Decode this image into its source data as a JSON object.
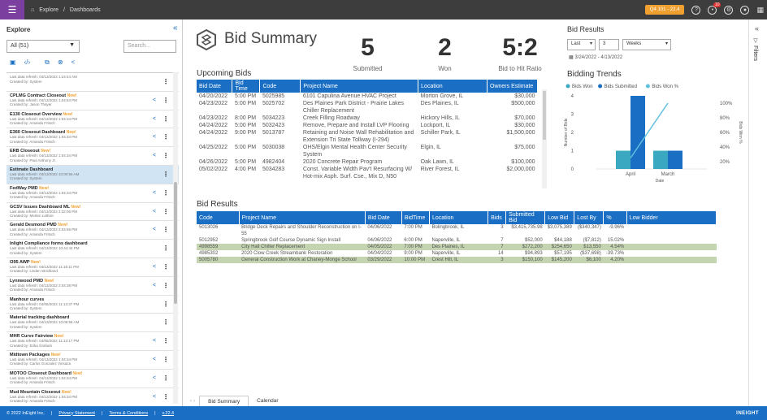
{
  "topbar": {
    "menu_icon": "hamburger-icon",
    "breadcrumb": [
      "Explore",
      "Dashboards"
    ],
    "env_badge": "Q4 101 - 22.4",
    "notification_count": "10"
  },
  "sidebar": {
    "title": "Explore",
    "filter_value": "All (51)",
    "search_placeholder": "Search...",
    "items": [
      {
        "name": "",
        "new": "",
        "refresh": "Last data refresh: 04/13/2022 1:24:44 AM",
        "created": "Created by: System"
      },
      {
        "name": "CPLMG Contract Closeout",
        "new": "New!",
        "refresh": "Last data refresh: 04/13/2022 1:04:54 PM",
        "created": "Created by: Jason Thayer"
      },
      {
        "name": "E130 Closeout Overview",
        "new": "New!",
        "refresh": "Last data refresh: 04/13/2022 1:04:34 PM",
        "created": "Created by: Amanda Fritsch"
      },
      {
        "name": "E360 Closeout Dashboard",
        "new": "New!",
        "refresh": "Last data refresh: 04/13/2022 1:04:34 PM",
        "created": "Created by: Amanda Fritsch"
      },
      {
        "name": "ERB Closeout",
        "new": "New!",
        "refresh": "Last data refresh: 04/13/2022 1:04:34 PM",
        "created": "Created by: Paul Anthony Jr."
      },
      {
        "name": "Estimate Dashboard",
        "new": "",
        "refresh": "Last data refresh: 04/13/2022 10:00:56 AM",
        "created": "Created by: System"
      },
      {
        "name": "FedWay PMD",
        "new": "New!",
        "refresh": "Last data refresh: 04/13/2022 1:04:34 PM",
        "created": "Created by: Amanda Fritsch"
      },
      {
        "name": "GCSV Issues Dashboard ML",
        "new": "New!",
        "refresh": "Last data refresh: 04/13/2022 2:32:06 PM",
        "created": "Created by: Morten Lathrer"
      },
      {
        "name": "Gerald Desmond PMD",
        "new": "New!",
        "refresh": "Last data refresh: 04/13/2022 2:04:55 PM",
        "created": "Created by: Amanda Fritsch"
      },
      {
        "name": "Inlight Compliance forms dashboard",
        "new": "",
        "refresh": "Last data refresh: 04/13/2022 10:44:44 PM",
        "created": "Created by: System"
      },
      {
        "name": "I395 AWP",
        "new": "New!",
        "refresh": "Last data refresh: 04/13/2022 11:16:11 PM",
        "created": "Created by: Lisden Strickland"
      },
      {
        "name": "Lynnwood PMD",
        "new": "New!",
        "refresh": "Last data refresh: 04/13/2022 2:04:38 PM",
        "created": "Created by: Amanda Fritsch"
      },
      {
        "name": "Manhour curves",
        "new": "",
        "refresh": "Last data refresh: 04/05/2022 11:13:37 PM",
        "created": "Created by: System"
      },
      {
        "name": "Material tracking dashboard",
        "new": "",
        "refresh": "Last data refresh: 04/13/2022 10:06:56 AM",
        "created": "Created by: System"
      },
      {
        "name": "MHR Curve Fairview",
        "new": "New!",
        "refresh": "Last data refresh: 04/05/2022 11:13:17 PM",
        "created": "Created by: Erika Graham"
      },
      {
        "name": "Midtown Packages",
        "new": "New!",
        "refresh": "Last data refresh: 04/13/2022 1:04:34 PM",
        "created": "Created by: Carlos Gonzalez Vinsaza"
      },
      {
        "name": "MOTOO Closeout Dashboard",
        "new": "New!",
        "refresh": "Last data refresh: 04/13/2022 1:04:34 PM",
        "created": "Created by: Amanda Fritsch"
      },
      {
        "name": "Mud Mountain Closeout",
        "new": "New!",
        "refresh": "Last data refresh: 04/13/2022 1:04:34 PM",
        "created": "Created by: Amanda Fritsch"
      }
    ]
  },
  "main": {
    "title": "Bid Summary",
    "kpis": [
      {
        "value": "5",
        "label": "Submitted"
      },
      {
        "value": "2",
        "label": "Won"
      },
      {
        "value": "5:2",
        "label": "Bid to Hit Ratio"
      }
    ],
    "upcoming": {
      "title": "Upcoming Bids",
      "headers": [
        "Bid Date",
        "Bid Time",
        "Code",
        "Project Name",
        "Location",
        "Owners Estimate"
      ],
      "rows": [
        [
          "04/20/2022",
          "5:00 PM",
          "5025985",
          "6101 Capulina Avenue HVAC Project",
          "Morton Grove, IL",
          "$30,000"
        ],
        [
          "04/23/2022",
          "5:00 PM",
          "5025702",
          "Des Plaines Park District - Prairie Lakes Chiller Replacement",
          "Des Plaines, IL",
          "$500,000"
        ],
        [
          "04/23/2022",
          "8:00 PM",
          "5034223",
          "Creek Filling Roadway",
          "Hickory Hills, IL",
          "$70,000"
        ],
        [
          "04/24/2022",
          "5:00 PM",
          "5032423",
          "Remove, Prepare and Install LVP Flooring",
          "Lockport, IL",
          "$30,000"
        ],
        [
          "04/24/2022",
          "9:00 PM",
          "5013787",
          "Retaining and Noise Wall Rehabilitation and Extension Tri State Tollway (I-294)",
          "Schiller Park, IL",
          "$1,500,000"
        ],
        [
          "04/25/2022",
          "5:00 PM",
          "5030038",
          "OHS/Elgin Mental Health Center Security System",
          "Elgin, IL",
          "$75,000"
        ],
        [
          "04/26/2022",
          "5:00 PM",
          "4982404",
          "2020 Concrete Repair Program",
          "Oak Lawn, IL",
          "$100,000"
        ],
        [
          "05/02/2022",
          "4:00 PM",
          "5034283",
          "Const. Variable Width Pav't Resurfacing W/ Hot-mix Asph. Surf. Cse., Mix D, N50",
          "River Forest, IL",
          "$2,000,000"
        ]
      ]
    },
    "bid_results": {
      "title": "Bid Results",
      "headers": [
        "Code",
        "Project Name",
        "Bid Date",
        "BidTime",
        "Location",
        "Bids",
        "Submitted Bid",
        "Low Bid",
        "Lost By",
        "%",
        "Low Bidder"
      ],
      "rows": [
        [
          "5013026",
          "Bridge Deck Repairs and Shoulder Reconstruction on I-55",
          "04/06/2022",
          "7:00 PM",
          "Bolingbrook, IL",
          "3",
          "$3,415,735.98",
          "$3,075,389",
          "($340,347)",
          "-9.96%",
          ""
        ],
        [
          "5012952",
          "Springbrook Golf Course Dynamic Sign Install",
          "04/06/2022",
          "6:00 PM",
          "Naperville, IL",
          "7",
          "$52,000",
          "$44,188",
          "($7,812)",
          "15.02%",
          ""
        ],
        [
          "4998559",
          "City Hall Chiller Replacement",
          "04/05/2022",
          "7:00 PM",
          "Des Plaines, IL",
          "7",
          "$272,200",
          "$254,650",
          "$13,550",
          "4.54%",
          ""
        ],
        [
          "4985302",
          "2020 Clow Creek Streambank Restoration",
          "04/04/2022",
          "9:00 PM",
          "Naperville, IL",
          "14",
          "$94,893",
          "$57,195",
          "($37,698)",
          "-39.73%",
          ""
        ],
        [
          "5005780",
          "General Construction Work at Chaney-Monge School",
          "03/29/2022",
          "10:00 PM",
          "Crest Hill, IL",
          "3",
          "$150,100",
          "$145,200",
          "$6,100",
          "4.20%",
          ""
        ]
      ],
      "row_status": [
        "white",
        "white",
        "green",
        "white",
        "green"
      ]
    },
    "side": {
      "title": "Bid Results",
      "period": "Last",
      "count": "3",
      "unit": "Weeks",
      "date_range": "3/24/2022 - 4/13/2022"
    },
    "tabs": [
      "Bid Summary",
      "Calendar"
    ]
  },
  "chart_data": {
    "type": "bar",
    "title": "Bidding Trends",
    "categories": [
      "April",
      "March"
    ],
    "series": [
      {
        "name": "Bids Won",
        "kind": "bar",
        "axis": "left",
        "values": [
          1,
          1
        ],
        "color": "#3aa8c1"
      },
      {
        "name": "Bids Submitted",
        "kind": "bar",
        "axis": "left",
        "values": [
          4,
          1
        ],
        "color": "#1a6fc4"
      },
      {
        "name": "Bids Won %",
        "kind": "line",
        "axis": "right",
        "values": [
          25,
          100
        ],
        "color": "#5fc0e0"
      }
    ],
    "xlabel": "Date",
    "ylabel": "Number of Bids",
    "y2label": "Bids Won %",
    "yticks": [
      0,
      1,
      2,
      3,
      4
    ],
    "y2ticks": [
      "20%",
      "40%",
      "60%",
      "80%",
      "100%"
    ],
    "ylim": [
      0,
      4
    ],
    "y2lim": [
      10,
      110
    ],
    "legend": "top"
  },
  "footer": {
    "copyright": "© 2022 InEight Inc.",
    "privacy": "Privacy Statement",
    "terms": "Terms & Conditions",
    "version": "v.22.4",
    "brand": "INEIGHT"
  }
}
